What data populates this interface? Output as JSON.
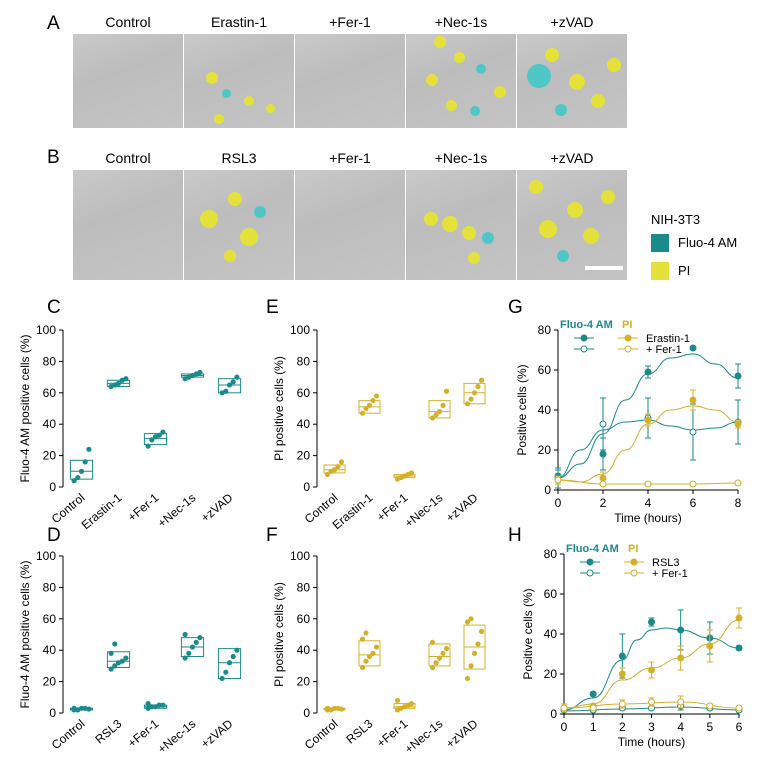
{
  "panel_labels": {
    "A": "A",
    "B": "B",
    "C": "C",
    "D": "D",
    "E": "E",
    "F": "F",
    "G": "G",
    "H": "H"
  },
  "row_A_titles": [
    "Control",
    "Erastin-1",
    "+Fer-1",
    "+Nec-1s",
    "+zVAD"
  ],
  "row_B_titles": [
    "Control",
    "RSL3",
    "+Fer-1",
    "+Nec-1s",
    "+zVAD"
  ],
  "legend": {
    "title": "NIH-3T3",
    "fluo": "Fluo-4 AM",
    "pi": "PI"
  },
  "colors": {
    "fluo": "#1a8a8a",
    "pi": "#d4b02a",
    "micro_bg": "#c4c4c4",
    "cell_yellow": "#e4e23a",
    "cell_cyan": "#4fc7c7"
  },
  "chart_data": [
    {
      "id": "C",
      "type": "box",
      "color": "#1a8a8a",
      "ylabel": "Fluo-4 AM positive cells (%)",
      "ylim": [
        0,
        100
      ],
      "yticks": [
        0,
        20,
        40,
        60,
        80,
        100
      ],
      "categories": [
        "Control",
        "Erastin-1",
        "+Fer-1",
        "+Nec-1s",
        "+zVAD"
      ],
      "boxes": [
        {
          "q1": 5,
          "median": 10,
          "q3": 17,
          "points": [
            4,
            6,
            10,
            16,
            24
          ]
        },
        {
          "q1": 64,
          "median": 66,
          "q3": 68,
          "points": [
            64,
            65,
            66,
            68,
            69
          ]
        },
        {
          "q1": 27,
          "median": 31,
          "q3": 34,
          "points": [
            26,
            30,
            32,
            33,
            35
          ]
        },
        {
          "q1": 70,
          "median": 71,
          "q3": 72,
          "points": [
            69,
            70,
            71,
            72,
            73
          ]
        },
        {
          "q1": 60,
          "median": 65,
          "q3": 69,
          "points": [
            60,
            61,
            65,
            67,
            70
          ]
        }
      ]
    },
    {
      "id": "D",
      "type": "box",
      "color": "#1a8a8a",
      "ylabel": "Fluo-4 AM positive cells (%)",
      "ylim": [
        0,
        100
      ],
      "yticks": [
        0,
        20,
        40,
        60,
        80,
        100
      ],
      "categories": [
        "Control",
        "RSL3",
        "+Fer-1",
        "+Nec-1s",
        "+zVAD"
      ],
      "boxes": [
        {
          "q1": 2,
          "median": 2.5,
          "q3": 3,
          "points": [
            2,
            2,
            3,
            3,
            2.5,
            3
          ]
        },
        {
          "q1": 29,
          "median": 33,
          "q3": 39,
          "points": [
            28,
            30,
            32,
            33,
            35,
            38,
            44
          ]
        },
        {
          "q1": 3,
          "median": 4,
          "q3": 5,
          "points": [
            3,
            4,
            4,
            5,
            5,
            6
          ]
        },
        {
          "q1": 36,
          "median": 42,
          "q3": 48,
          "points": [
            35,
            38,
            42,
            45,
            48,
            50
          ]
        },
        {
          "q1": 22,
          "median": 32,
          "q3": 41,
          "points": [
            22,
            26,
            32,
            36,
            40
          ]
        }
      ]
    },
    {
      "id": "E",
      "type": "box",
      "color": "#d4b02a",
      "ylabel": "PI positive cells (%)",
      "ylim": [
        0,
        100
      ],
      "yticks": [
        0,
        20,
        40,
        60,
        80,
        100
      ],
      "categories": [
        "Control",
        "Erastin-1",
        "+Fer-1",
        "+Nec-1s",
        "+zVAD"
      ],
      "boxes": [
        {
          "q1": 9,
          "median": 11,
          "q3": 14,
          "points": [
            8,
            10,
            11,
            13,
            16
          ]
        },
        {
          "q1": 47,
          "median": 51,
          "q3": 55,
          "points": [
            47,
            50,
            52,
            55,
            58
          ]
        },
        {
          "q1": 6,
          "median": 7,
          "q3": 8,
          "points": [
            5,
            6,
            7,
            8,
            9
          ]
        },
        {
          "q1": 44,
          "median": 48,
          "q3": 55,
          "points": [
            44,
            46,
            48,
            52,
            61
          ]
        },
        {
          "q1": 53,
          "median": 60,
          "q3": 66,
          "points": [
            53,
            56,
            60,
            64,
            68
          ]
        }
      ]
    },
    {
      "id": "F",
      "type": "box",
      "color": "#d4b02a",
      "ylabel": "PI positive cells (%)",
      "ylim": [
        0,
        100
      ],
      "yticks": [
        0,
        20,
        40,
        60,
        80,
        100
      ],
      "categories": [
        "Control",
        "RSL3",
        "+Fer-1",
        "+Nec-1s",
        "+zVAD"
      ],
      "boxes": [
        {
          "q1": 2,
          "median": 2.5,
          "q3": 3,
          "points": [
            2,
            2,
            3,
            3,
            2.5,
            3
          ]
        },
        {
          "q1": 30,
          "median": 37,
          "q3": 46,
          "points": [
            29,
            33,
            36,
            38,
            42,
            47,
            51
          ]
        },
        {
          "q1": 3,
          "median": 4,
          "q3": 6,
          "points": [
            2,
            3,
            4,
            5,
            6,
            8
          ]
        },
        {
          "q1": 30,
          "median": 36,
          "q3": 44,
          "points": [
            29,
            32,
            35,
            38,
            41,
            45
          ]
        },
        {
          "q1": 28,
          "median": 42,
          "q3": 56,
          "points": [
            22,
            30,
            38,
            44,
            52,
            58,
            60
          ]
        }
      ]
    },
    {
      "id": "G",
      "type": "line",
      "xlabel": "Time (hours)",
      "ylabel": "Positive cells (%)",
      "xlim": [
        0,
        8
      ],
      "ylim": [
        0,
        80
      ],
      "xticks": [
        0,
        2,
        4,
        6,
        8
      ],
      "yticks": [
        0,
        20,
        40,
        60,
        80
      ],
      "legend_headers": {
        "fluo": "Fluo-4 AM",
        "pi": "PI"
      },
      "legend_labels": [
        "Erastin-1",
        "+ Fer-1"
      ],
      "series": [
        {
          "marker": "filled",
          "color": "#1a8a8a",
          "x": [
            0,
            2,
            4,
            6,
            8
          ],
          "y": [
            7,
            18,
            59,
            71,
            57
          ],
          "err": [
            3,
            8,
            3,
            0,
            6
          ],
          "curve": [
            [
              0,
              6
            ],
            [
              1,
              13
            ],
            [
              2,
              28
            ],
            [
              3,
              45
            ],
            [
              4,
              58
            ],
            [
              5,
              66
            ],
            [
              6,
              68
            ],
            [
              7,
              63
            ],
            [
              8,
              56
            ]
          ]
        },
        {
          "marker": "open",
          "color": "#1a8a8a",
          "x": [
            0,
            2,
            4,
            6,
            8
          ],
          "y": [
            6,
            33,
            36,
            29,
            34
          ],
          "err": [
            5,
            13,
            10,
            14,
            11
          ],
          "curve": [
            [
              0,
              6
            ],
            [
              1,
              20
            ],
            [
              2,
              30
            ],
            [
              3,
              34
            ],
            [
              4,
              35
            ],
            [
              5,
              32
            ],
            [
              6,
              30
            ],
            [
              7,
              31
            ],
            [
              8,
              34
            ]
          ]
        },
        {
          "marker": "filled",
          "color": "#d4b02a",
          "x": [
            0,
            2,
            4,
            6,
            8
          ],
          "y": [
            5,
            6,
            35,
            45,
            33
          ],
          "err": [
            2,
            3,
            3,
            5,
            2
          ],
          "curve": [
            [
              0,
              5
            ],
            [
              1,
              4
            ],
            [
              2,
              8
            ],
            [
              3,
              20
            ],
            [
              4,
              33
            ],
            [
              5,
              40
            ],
            [
              6,
              42
            ],
            [
              7,
              40
            ],
            [
              8,
              34
            ]
          ]
        },
        {
          "marker": "open",
          "color": "#d4b02a",
          "x": [
            0,
            2,
            4,
            6,
            8
          ],
          "y": [
            5,
            3,
            3,
            3,
            3.5
          ],
          "err": [
            1,
            1,
            1,
            1,
            1
          ],
          "curve": [
            [
              0,
              5
            ],
            [
              2,
              3
            ],
            [
              4,
              3
            ],
            [
              6,
              3
            ],
            [
              8,
              3.5
            ]
          ]
        }
      ]
    },
    {
      "id": "H",
      "type": "line",
      "xlabel": "Time (hours)",
      "ylabel": "Positive cells (%)",
      "xlim": [
        0,
        6
      ],
      "ylim": [
        0,
        80
      ],
      "xticks": [
        0,
        1,
        2,
        3,
        4,
        5,
        6
      ],
      "yticks": [
        0,
        20,
        40,
        60,
        80
      ],
      "legend_headers": {
        "fluo": "Fluo-4 AM",
        "pi": "PI"
      },
      "legend_labels": [
        "RSL3",
        "+ Fer-1"
      ],
      "series": [
        {
          "marker": "filled",
          "color": "#1a8a8a",
          "x": [
            0,
            1,
            2,
            3,
            4,
            5,
            6
          ],
          "y": [
            3,
            10,
            29,
            46,
            42,
            38,
            33
          ],
          "err": [
            1,
            1,
            11,
            2,
            10,
            8,
            1
          ],
          "curve": [
            [
              0,
              2
            ],
            [
              1,
              8
            ],
            [
              2,
              27
            ],
            [
              2.5,
              37
            ],
            [
              3,
              42
            ],
            [
              3.5,
              43
            ],
            [
              4,
              42
            ],
            [
              5,
              38
            ],
            [
              6,
              33
            ]
          ]
        },
        {
          "marker": "open",
          "color": "#1a8a8a",
          "x": [
            0,
            1,
            2,
            3,
            4,
            5,
            6
          ],
          "y": [
            2,
            2,
            3,
            3,
            4,
            3,
            2
          ],
          "err": [
            1,
            1,
            1,
            1,
            2,
            1,
            1
          ],
          "curve": [
            [
              0,
              1.5
            ],
            [
              2,
              2.5
            ],
            [
              4,
              3.5
            ],
            [
              6,
              2
            ]
          ]
        },
        {
          "marker": "filled",
          "color": "#d4b02a",
          "x": [
            0,
            1,
            2,
            3,
            4,
            5,
            6
          ],
          "y": [
            3,
            4,
            20,
            22,
            28,
            34,
            48
          ],
          "err": [
            2,
            1,
            3,
            4,
            6,
            8,
            5
          ],
          "curve": [
            [
              0,
              3
            ],
            [
              1,
              5
            ],
            [
              2,
              17
            ],
            [
              3,
              23
            ],
            [
              4,
              28
            ],
            [
              5,
              35
            ],
            [
              6,
              47
            ]
          ]
        },
        {
          "marker": "open",
          "color": "#d4b02a",
          "x": [
            0,
            1,
            2,
            3,
            4,
            5,
            6
          ],
          "y": [
            3,
            3,
            5,
            6,
            6,
            4,
            3
          ],
          "err": [
            1,
            1,
            2,
            2,
            3,
            1,
            1
          ],
          "curve": [
            [
              0,
              3
            ],
            [
              2,
              5
            ],
            [
              4,
              6
            ],
            [
              6,
              3
            ]
          ]
        }
      ]
    }
  ]
}
